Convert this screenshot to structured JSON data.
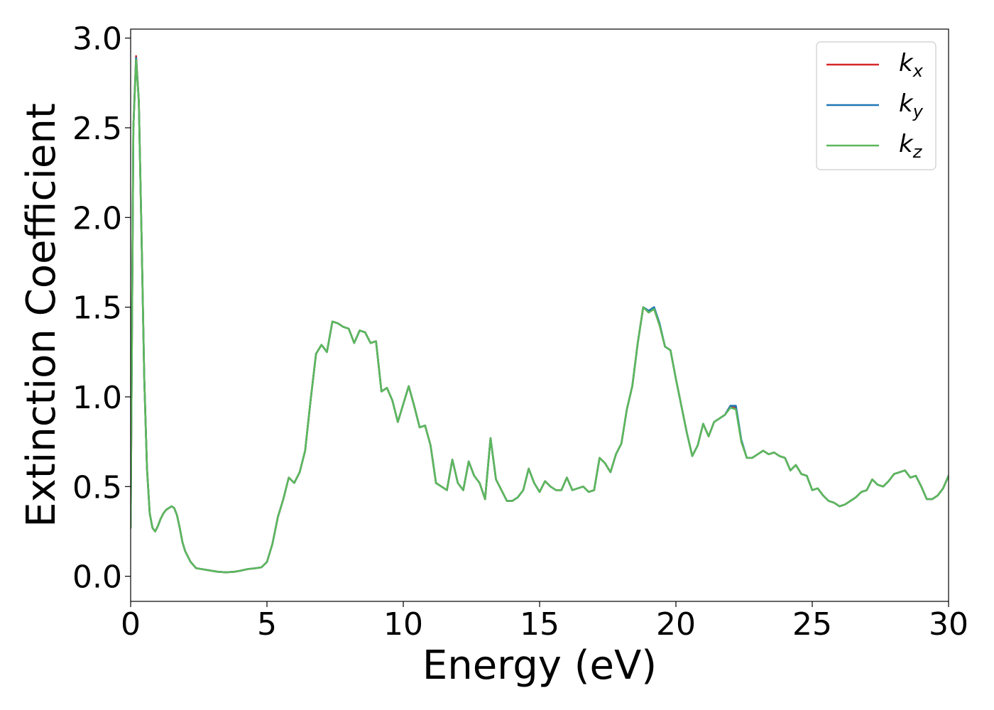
{
  "chart_data": {
    "type": "line",
    "xlabel": "Energy (eV)",
    "ylabel": "Extinction Coefficient",
    "xlim": [
      0,
      30
    ],
    "ylim": [
      -0.14,
      3.05
    ],
    "xticks": [
      0,
      5,
      10,
      15,
      20,
      25,
      30
    ],
    "xtick_labels": [
      "0",
      "5",
      "10",
      "15",
      "20",
      "25",
      "30"
    ],
    "yticks": [
      0.0,
      0.5,
      1.0,
      1.5,
      2.0,
      2.5,
      3.0
    ],
    "ytick_labels": [
      "0.0",
      "0.5",
      "1.0",
      "1.5",
      "2.0",
      "2.5",
      "3.0"
    ],
    "grid": false,
    "legend_position": "top-right",
    "series": [
      {
        "name": "k",
        "subscript": "x",
        "color": "#d62728",
        "x": [
          0,
          0.1,
          0.2,
          0.3,
          0.4,
          0.5,
          0.6,
          0.7,
          0.8,
          0.9,
          1.0,
          1.1,
          1.2,
          1.3,
          1.4,
          1.5,
          1.6,
          1.7,
          1.8,
          1.9,
          2.0,
          2.2,
          2.4,
          2.6,
          2.8,
          3.0,
          3.2,
          3.5,
          3.8,
          4.0,
          4.3,
          4.6,
          4.8,
          5.0,
          5.2,
          5.4,
          5.6,
          5.8,
          6.0,
          6.2,
          6.4,
          6.6,
          6.8,
          7.0,
          7.2,
          7.4,
          7.6,
          7.8,
          8.0,
          8.2,
          8.4,
          8.6,
          8.8,
          9.0,
          9.2,
          9.4,
          9.6,
          9.8,
          10.0,
          10.2,
          10.4,
          10.6,
          10.8,
          11.0,
          11.2,
          11.4,
          11.6,
          11.8,
          12.0,
          12.2,
          12.4,
          12.6,
          12.8,
          13.0,
          13.2,
          13.4,
          13.6,
          13.8,
          14.0,
          14.2,
          14.4,
          14.6,
          14.8,
          15.0,
          15.2,
          15.4,
          15.6,
          15.8,
          16.0,
          16.2,
          16.4,
          16.6,
          16.8,
          17.0,
          17.2,
          17.4,
          17.6,
          17.8,
          18.0,
          18.2,
          18.4,
          18.6,
          18.8,
          19.0,
          19.2,
          19.4,
          19.6,
          19.8,
          20.0,
          20.2,
          20.4,
          20.6,
          20.8,
          21.0,
          21.2,
          21.4,
          21.6,
          21.8,
          22.0,
          22.2,
          22.4,
          22.6,
          22.8,
          23.0,
          23.2,
          23.4,
          23.6,
          23.8,
          24.0,
          24.2,
          24.4,
          24.6,
          24.8,
          25.0,
          25.2,
          25.4,
          25.6,
          25.8,
          26.0,
          26.2,
          26.4,
          26.6,
          26.8,
          27.0,
          27.2,
          27.4,
          27.6,
          27.8,
          28.0,
          28.2,
          28.4,
          28.6,
          28.8,
          29.0,
          29.2,
          29.4,
          29.6,
          29.8,
          30.0
        ],
        "y": [
          0.27,
          2.5,
          2.9,
          2.65,
          1.9,
          1.1,
          0.6,
          0.35,
          0.27,
          0.25,
          0.28,
          0.32,
          0.35,
          0.37,
          0.38,
          0.39,
          0.38,
          0.34,
          0.27,
          0.19,
          0.14,
          0.08,
          0.045,
          0.04,
          0.035,
          0.03,
          0.025,
          0.022,
          0.025,
          0.03,
          0.04,
          0.045,
          0.05,
          0.08,
          0.18,
          0.33,
          0.43,
          0.55,
          0.52,
          0.58,
          0.7,
          0.98,
          1.24,
          1.29,
          1.25,
          1.42,
          1.41,
          1.39,
          1.38,
          1.3,
          1.37,
          1.36,
          1.3,
          1.31,
          1.03,
          1.05,
          0.98,
          0.86,
          0.96,
          1.06,
          0.95,
          0.83,
          0.84,
          0.73,
          0.52,
          0.5,
          0.48,
          0.65,
          0.52,
          0.48,
          0.64,
          0.56,
          0.52,
          0.43,
          0.77,
          0.54,
          0.48,
          0.42,
          0.42,
          0.44,
          0.48,
          0.6,
          0.52,
          0.47,
          0.53,
          0.5,
          0.48,
          0.48,
          0.55,
          0.48,
          0.49,
          0.5,
          0.47,
          0.48,
          0.66,
          0.63,
          0.58,
          0.68,
          0.74,
          0.93,
          1.06,
          1.3,
          1.5,
          1.47,
          1.49,
          1.4,
          1.28,
          1.26,
          1.1,
          0.95,
          0.8,
          0.67,
          0.73,
          0.85,
          0.78,
          0.86,
          0.88,
          0.9,
          0.95,
          0.94,
          0.75,
          0.66,
          0.66,
          0.68,
          0.7,
          0.68,
          0.69,
          0.67,
          0.66,
          0.59,
          0.62,
          0.57,
          0.56,
          0.48,
          0.49,
          0.45,
          0.42,
          0.41,
          0.39,
          0.4,
          0.42,
          0.44,
          0.47,
          0.48,
          0.54,
          0.51,
          0.5,
          0.53,
          0.57,
          0.58,
          0.59,
          0.55,
          0.56,
          0.5,
          0.43,
          0.43,
          0.45,
          0.49,
          0.56
        ]
      },
      {
        "name": "k",
        "subscript": "y",
        "color": "#1f77b4",
        "x": [
          0,
          0.1,
          0.2,
          0.3,
          0.4,
          0.5,
          0.6,
          0.7,
          0.8,
          0.9,
          1.0,
          1.1,
          1.2,
          1.3,
          1.4,
          1.5,
          1.6,
          1.7,
          1.8,
          1.9,
          2.0,
          2.2,
          2.4,
          2.6,
          2.8,
          3.0,
          3.2,
          3.5,
          3.8,
          4.0,
          4.3,
          4.6,
          4.8,
          5.0,
          5.2,
          5.4,
          5.6,
          5.8,
          6.0,
          6.2,
          6.4,
          6.6,
          6.8,
          7.0,
          7.2,
          7.4,
          7.6,
          7.8,
          8.0,
          8.2,
          8.4,
          8.6,
          8.8,
          9.0,
          9.2,
          9.4,
          9.6,
          9.8,
          10.0,
          10.2,
          10.4,
          10.6,
          10.8,
          11.0,
          11.2,
          11.4,
          11.6,
          11.8,
          12.0,
          12.2,
          12.4,
          12.6,
          12.8,
          13.0,
          13.2,
          13.4,
          13.6,
          13.8,
          14.0,
          14.2,
          14.4,
          14.6,
          14.8,
          15.0,
          15.2,
          15.4,
          15.6,
          15.8,
          16.0,
          16.2,
          16.4,
          16.6,
          16.8,
          17.0,
          17.2,
          17.4,
          17.6,
          17.8,
          18.0,
          18.2,
          18.4,
          18.6,
          18.8,
          19.0,
          19.2,
          19.4,
          19.6,
          19.8,
          20.0,
          20.2,
          20.4,
          20.6,
          20.8,
          21.0,
          21.2,
          21.4,
          21.6,
          21.8,
          22.0,
          22.2,
          22.4,
          22.6,
          22.8,
          23.0,
          23.2,
          23.4,
          23.6,
          23.8,
          24.0,
          24.2,
          24.4,
          24.6,
          24.8,
          25.0,
          25.2,
          25.4,
          25.6,
          25.8,
          26.0,
          26.2,
          26.4,
          26.6,
          26.8,
          27.0,
          27.2,
          27.4,
          27.6,
          27.8,
          28.0,
          28.2,
          28.4,
          28.6,
          28.8,
          29.0,
          29.2,
          29.4,
          29.6,
          29.8,
          30.0
        ],
        "y": [
          0.27,
          2.5,
          2.89,
          2.65,
          1.9,
          1.1,
          0.6,
          0.35,
          0.27,
          0.25,
          0.28,
          0.32,
          0.35,
          0.37,
          0.38,
          0.39,
          0.38,
          0.34,
          0.27,
          0.19,
          0.14,
          0.08,
          0.045,
          0.04,
          0.035,
          0.03,
          0.025,
          0.022,
          0.025,
          0.03,
          0.04,
          0.045,
          0.05,
          0.08,
          0.18,
          0.33,
          0.43,
          0.55,
          0.52,
          0.58,
          0.7,
          0.98,
          1.24,
          1.29,
          1.25,
          1.42,
          1.41,
          1.39,
          1.38,
          1.3,
          1.37,
          1.36,
          1.3,
          1.31,
          1.03,
          1.05,
          0.98,
          0.86,
          0.96,
          1.06,
          0.95,
          0.83,
          0.84,
          0.73,
          0.52,
          0.5,
          0.48,
          0.65,
          0.52,
          0.48,
          0.64,
          0.56,
          0.52,
          0.43,
          0.77,
          0.54,
          0.48,
          0.42,
          0.42,
          0.44,
          0.48,
          0.6,
          0.52,
          0.47,
          0.53,
          0.5,
          0.48,
          0.48,
          0.55,
          0.48,
          0.49,
          0.5,
          0.47,
          0.48,
          0.66,
          0.63,
          0.58,
          0.68,
          0.74,
          0.93,
          1.06,
          1.3,
          1.5,
          1.48,
          1.5,
          1.41,
          1.28,
          1.26,
          1.1,
          0.95,
          0.8,
          0.67,
          0.73,
          0.85,
          0.78,
          0.86,
          0.88,
          0.9,
          0.95,
          0.95,
          0.76,
          0.66,
          0.66,
          0.68,
          0.7,
          0.68,
          0.69,
          0.67,
          0.66,
          0.59,
          0.62,
          0.57,
          0.56,
          0.48,
          0.49,
          0.45,
          0.42,
          0.41,
          0.39,
          0.4,
          0.42,
          0.44,
          0.47,
          0.48,
          0.54,
          0.51,
          0.5,
          0.53,
          0.57,
          0.58,
          0.59,
          0.55,
          0.56,
          0.5,
          0.43,
          0.43,
          0.45,
          0.49,
          0.56
        ]
      },
      {
        "name": "k",
        "subscript": "z",
        "color": "#5cb85c",
        "x": [
          0,
          0.1,
          0.2,
          0.3,
          0.4,
          0.5,
          0.6,
          0.7,
          0.8,
          0.9,
          1.0,
          1.1,
          1.2,
          1.3,
          1.4,
          1.5,
          1.6,
          1.7,
          1.8,
          1.9,
          2.0,
          2.2,
          2.4,
          2.6,
          2.8,
          3.0,
          3.2,
          3.5,
          3.8,
          4.0,
          4.3,
          4.6,
          4.8,
          5.0,
          5.2,
          5.4,
          5.6,
          5.8,
          6.0,
          6.2,
          6.4,
          6.6,
          6.8,
          7.0,
          7.2,
          7.4,
          7.6,
          7.8,
          8.0,
          8.2,
          8.4,
          8.6,
          8.8,
          9.0,
          9.2,
          9.4,
          9.6,
          9.8,
          10.0,
          10.2,
          10.4,
          10.6,
          10.8,
          11.0,
          11.2,
          11.4,
          11.6,
          11.8,
          12.0,
          12.2,
          12.4,
          12.6,
          12.8,
          13.0,
          13.2,
          13.4,
          13.6,
          13.8,
          14.0,
          14.2,
          14.4,
          14.6,
          14.8,
          15.0,
          15.2,
          15.4,
          15.6,
          15.8,
          16.0,
          16.2,
          16.4,
          16.6,
          16.8,
          17.0,
          17.2,
          17.4,
          17.6,
          17.8,
          18.0,
          18.2,
          18.4,
          18.6,
          18.8,
          19.0,
          19.2,
          19.4,
          19.6,
          19.8,
          20.0,
          20.2,
          20.4,
          20.6,
          20.8,
          21.0,
          21.2,
          21.4,
          21.6,
          21.8,
          22.0,
          22.2,
          22.4,
          22.6,
          22.8,
          23.0,
          23.2,
          23.4,
          23.6,
          23.8,
          24.0,
          24.2,
          24.4,
          24.6,
          24.8,
          25.0,
          25.2,
          25.4,
          25.6,
          25.8,
          26.0,
          26.2,
          26.4,
          26.6,
          26.8,
          27.0,
          27.2,
          27.4,
          27.6,
          27.8,
          28.0,
          28.2,
          28.4,
          28.6,
          28.8,
          29.0,
          29.2,
          29.4,
          29.6,
          29.8,
          30.0
        ],
        "y": [
          0.27,
          2.5,
          2.88,
          2.65,
          1.9,
          1.1,
          0.6,
          0.35,
          0.27,
          0.25,
          0.28,
          0.32,
          0.35,
          0.37,
          0.38,
          0.39,
          0.38,
          0.34,
          0.27,
          0.19,
          0.14,
          0.08,
          0.045,
          0.04,
          0.035,
          0.03,
          0.025,
          0.022,
          0.025,
          0.03,
          0.04,
          0.045,
          0.05,
          0.08,
          0.18,
          0.33,
          0.43,
          0.55,
          0.52,
          0.58,
          0.7,
          0.98,
          1.24,
          1.29,
          1.25,
          1.42,
          1.41,
          1.39,
          1.38,
          1.3,
          1.37,
          1.36,
          1.3,
          1.31,
          1.03,
          1.05,
          0.98,
          0.86,
          0.96,
          1.06,
          0.95,
          0.83,
          0.84,
          0.73,
          0.52,
          0.5,
          0.48,
          0.65,
          0.52,
          0.48,
          0.64,
          0.56,
          0.52,
          0.43,
          0.77,
          0.54,
          0.48,
          0.42,
          0.42,
          0.44,
          0.48,
          0.6,
          0.52,
          0.47,
          0.53,
          0.5,
          0.48,
          0.48,
          0.55,
          0.48,
          0.49,
          0.5,
          0.47,
          0.48,
          0.66,
          0.63,
          0.58,
          0.68,
          0.74,
          0.93,
          1.06,
          1.3,
          1.5,
          1.47,
          1.49,
          1.4,
          1.28,
          1.26,
          1.1,
          0.95,
          0.8,
          0.67,
          0.73,
          0.85,
          0.78,
          0.86,
          0.88,
          0.9,
          0.94,
          0.93,
          0.75,
          0.66,
          0.66,
          0.68,
          0.7,
          0.68,
          0.69,
          0.67,
          0.66,
          0.59,
          0.62,
          0.57,
          0.56,
          0.48,
          0.49,
          0.45,
          0.42,
          0.41,
          0.39,
          0.4,
          0.42,
          0.44,
          0.47,
          0.48,
          0.54,
          0.51,
          0.5,
          0.53,
          0.57,
          0.58,
          0.59,
          0.55,
          0.56,
          0.5,
          0.43,
          0.43,
          0.45,
          0.49,
          0.56
        ]
      }
    ]
  }
}
